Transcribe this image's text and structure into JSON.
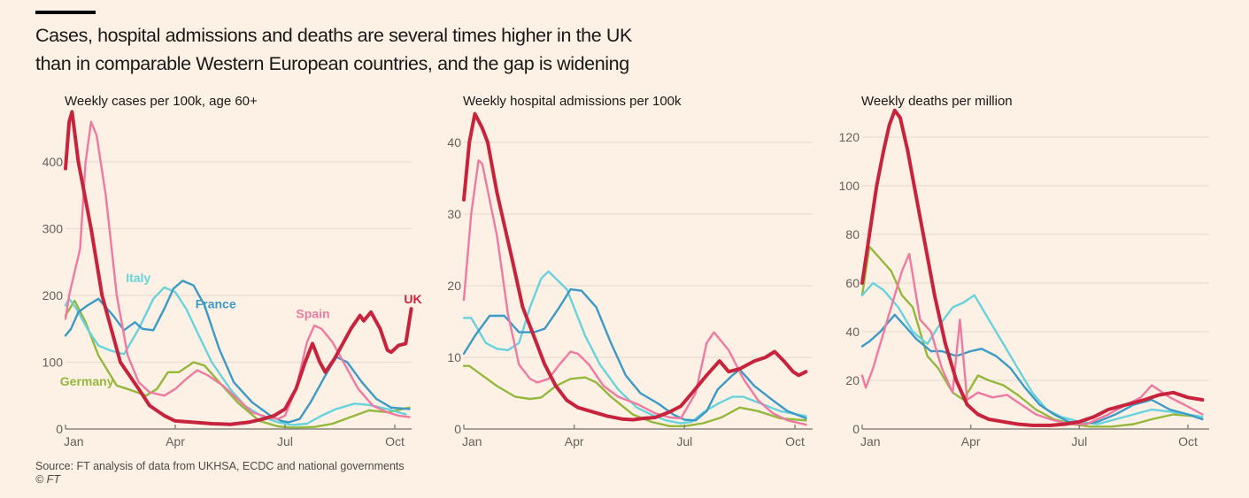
{
  "header": {
    "title_line1": "Cases, hospital admissions and deaths are several times higher in the UK",
    "title_line2": "than in comparable Western European countries, and the gap is widening"
  },
  "footer": {
    "source": "Source: FT analysis of data from UKHSA, ECDC and national governments",
    "copyright": "© FT"
  },
  "colors": {
    "UK": "#c8233d",
    "Spain": "#ef7aa1",
    "France": "#3b9ac6",
    "Italy": "#67d3dc",
    "Germany": "#93b83c",
    "grid": "#e8ddd2",
    "axis": "#8a8580",
    "tick_label": "#66605c"
  },
  "chart_data": [
    {
      "type": "line",
      "title": "Weekly cases per 100k, age 60+",
      "xlabel": "",
      "ylabel": "",
      "x_unit": "months since Jan 1",
      "x_ticks": [
        {
          "value": 0,
          "label": "Jan"
        },
        {
          "value": 3,
          "label": "Apr"
        },
        {
          "value": 6,
          "label": "Jul"
        },
        {
          "value": 9,
          "label": "Oct"
        }
      ],
      "xlim": [
        0,
        9.5
      ],
      "y_ticks": [
        0,
        100,
        200,
        300,
        400
      ],
      "ylim": [
        0,
        480
      ],
      "grid": true,
      "legend": "inline labels",
      "labels": [
        {
          "series": "Italy",
          "text": "Italy",
          "x": 1.65,
          "y": 220
        },
        {
          "series": "France",
          "text": "France",
          "x": 3.55,
          "y": 181
        },
        {
          "series": "Germany",
          "text": "Germany",
          "x": -0.15,
          "y": 65
        },
        {
          "series": "Spain",
          "text": "Spain",
          "x": 6.3,
          "y": 166
        },
        {
          "series": "UK",
          "text": "UK",
          "x": 9.25,
          "y": 188
        }
      ],
      "series": [
        {
          "name": "Germany",
          "x": [
            0,
            0.25,
            0.55,
            0.9,
            1.4,
            1.8,
            2.2,
            2.5,
            2.8,
            3.1,
            3.5,
            3.8,
            4.2,
            4.7,
            5.3,
            5.8,
            6.2,
            6.8,
            7.3,
            7.8,
            8.3,
            8.8,
            9.4
          ],
          "y": [
            170,
            192,
            160,
            110,
            65,
            58,
            50,
            60,
            85,
            85,
            100,
            95,
            70,
            40,
            12,
            4,
            2,
            3,
            8,
            18,
            28,
            25,
            32
          ]
        },
        {
          "name": "Italy",
          "x": [
            0,
            0.1,
            0.3,
            0.6,
            0.9,
            1.2,
            1.6,
            2.0,
            2.4,
            2.7,
            3.0,
            3.3,
            3.6,
            4.0,
            4.5,
            4.9,
            5.4,
            5.8,
            6.2,
            6.6,
            7.0,
            7.4,
            7.9,
            8.3,
            8.8,
            9.1,
            9.3
          ],
          "y": [
            185,
            195,
            180,
            150,
            125,
            118,
            112,
            150,
            195,
            212,
            205,
            180,
            145,
            100,
            60,
            35,
            18,
            10,
            6,
            8,
            20,
            30,
            38,
            36,
            30,
            25,
            22
          ]
        },
        {
          "name": "France",
          "x": [
            0,
            0.15,
            0.35,
            0.6,
            0.9,
            1.3,
            1.6,
            1.9,
            2.1,
            2.4,
            2.7,
            2.95,
            3.2,
            3.5,
            3.8,
            4.2,
            4.6,
            5.1,
            5.6,
            5.9,
            6.1,
            6.4,
            6.7,
            7.1,
            7.4,
            7.7,
            8.1,
            8.5,
            8.9,
            9.4
          ],
          "y": [
            140,
            150,
            175,
            185,
            195,
            170,
            148,
            160,
            150,
            148,
            180,
            210,
            222,
            215,
            185,
            120,
            70,
            40,
            20,
            12,
            10,
            15,
            40,
            80,
            108,
            100,
            70,
            45,
            32,
            30
          ]
        },
        {
          "name": "Spain",
          "x": [
            0,
            0.1,
            0.4,
            0.55,
            0.7,
            0.85,
            1.1,
            1.4,
            1.7,
            2.0,
            2.3,
            2.7,
            3.0,
            3.3,
            3.6,
            3.9,
            4.3,
            4.7,
            5.1,
            5.5,
            5.8,
            6.0,
            6.3,
            6.6,
            6.8,
            7.0,
            7.3,
            7.6,
            8.0,
            8.4,
            8.8,
            9.1,
            9.4
          ],
          "y": [
            165,
            200,
            270,
            400,
            460,
            440,
            350,
            200,
            110,
            70,
            55,
            50,
            60,
            75,
            88,
            80,
            65,
            45,
            25,
            18,
            15,
            20,
            60,
            130,
            155,
            150,
            130,
            100,
            60,
            35,
            25,
            20,
            18
          ]
        },
        {
          "name": "UK",
          "x": [
            0,
            0.1,
            0.18,
            0.35,
            0.7,
            1.0,
            1.5,
            2.0,
            2.3,
            2.7,
            3.0,
            3.5,
            4.0,
            4.5,
            5.0,
            5.4,
            5.7,
            6.0,
            6.3,
            6.55,
            6.75,
            6.95,
            7.1,
            7.35,
            7.6,
            7.8,
            8.05,
            8.15,
            8.35,
            8.6,
            8.8,
            8.9,
            9.1,
            9.3,
            9.45
          ],
          "y": [
            390,
            460,
            475,
            400,
            300,
            200,
            100,
            60,
            35,
            20,
            12,
            10,
            8,
            7,
            10,
            15,
            20,
            30,
            60,
            100,
            128,
            100,
            85,
            105,
            130,
            150,
            170,
            162,
            175,
            150,
            118,
            115,
            125,
            128,
            180
          ]
        }
      ]
    },
    {
      "type": "line",
      "title": "Weekly hospital admissions per 100k",
      "xlabel": "",
      "ylabel": "",
      "x_unit": "months since Jan 1",
      "x_ticks": [
        {
          "value": 0,
          "label": "Jan"
        },
        {
          "value": 3,
          "label": "Apr"
        },
        {
          "value": 6,
          "label": "Jul"
        },
        {
          "value": 9,
          "label": "Oct"
        }
      ],
      "xlim": [
        0,
        9.5
      ],
      "y_ticks": [
        0,
        10,
        20,
        30,
        40
      ],
      "ylim": [
        0,
        45
      ],
      "grid": true,
      "legend": "none",
      "series": [
        {
          "name": "Germany",
          "x": [
            0,
            0.15,
            0.5,
            0.9,
            1.4,
            1.8,
            2.1,
            2.5,
            2.9,
            3.3,
            3.6,
            4.0,
            4.6,
            5.1,
            5.6,
            6.0,
            6.5,
            7.0,
            7.5,
            8.0,
            8.6,
            9.3
          ],
          "y": [
            8.8,
            8.8,
            7.5,
            6,
            4.5,
            4.2,
            4.4,
            6,
            7,
            7.2,
            6.5,
            4.5,
            2,
            1,
            0.4,
            0.4,
            0.8,
            1.6,
            3,
            2.5,
            1.5,
            1.2
          ]
        },
        {
          "name": "Italy",
          "x": [
            0,
            0.2,
            0.6,
            0.9,
            1.2,
            1.5,
            1.8,
            2.1,
            2.3,
            2.6,
            2.8,
            3.3,
            3.7,
            4.2,
            4.7,
            5.1,
            5.5,
            5.9,
            6.2,
            6.5,
            6.9,
            7.3,
            7.6,
            8.1,
            8.6,
            9.3
          ],
          "y": [
            15.5,
            15.5,
            12,
            11.2,
            11,
            12,
            17,
            21,
            22,
            20.5,
            19.5,
            13,
            9,
            5.5,
            3,
            2,
            1.2,
            0.8,
            1,
            2.3,
            3.5,
            4.5,
            4.5,
            3.5,
            2.5,
            1.8
          ]
        },
        {
          "name": "France",
          "x": [
            0,
            0.3,
            0.7,
            1.1,
            1.5,
            1.9,
            2.2,
            2.6,
            2.9,
            3.2,
            3.6,
            4.0,
            4.4,
            4.8,
            5.3,
            5.7,
            6.0,
            6.3,
            6.6,
            6.9,
            7.3,
            7.5,
            7.9,
            8.4,
            8.8,
            9.3
          ],
          "y": [
            10.5,
            13,
            15.8,
            15.8,
            13.5,
            13.5,
            14,
            17,
            19.5,
            19.3,
            17,
            12,
            7.5,
            5,
            3.5,
            2,
            1.3,
            1.2,
            2.5,
            5.5,
            7.5,
            8.3,
            6,
            4,
            2.5,
            1.5
          ]
        },
        {
          "name": "Spain",
          "x": [
            0,
            0.2,
            0.4,
            0.5,
            0.9,
            1.2,
            1.5,
            1.8,
            2.0,
            2.3,
            2.6,
            2.9,
            3.1,
            3.4,
            3.8,
            4.2,
            4.7,
            5.2,
            5.6,
            5.9,
            6.3,
            6.6,
            6.8,
            7.2,
            7.6,
            8.0,
            8.4,
            8.8,
            9.3
          ],
          "y": [
            18,
            30,
            37.5,
            37,
            27,
            16,
            9,
            7,
            6.5,
            7,
            9,
            10.8,
            10.5,
            9,
            6,
            4.5,
            3.5,
            2.2,
            1.6,
            1.5,
            5,
            12,
            13.5,
            11,
            7,
            4,
            2.2,
            1.2,
            0.6
          ]
        },
        {
          "name": "UK",
          "x": [
            0,
            0.15,
            0.3,
            0.5,
            0.65,
            0.9,
            1.3,
            1.6,
            1.9,
            2.2,
            2.5,
            2.8,
            3.1,
            3.5,
            3.9,
            4.3,
            4.6,
            4.9,
            5.2,
            5.6,
            5.9,
            6.2,
            6.6,
            6.95,
            7.2,
            7.5,
            7.9,
            8.2,
            8.45,
            8.7,
            8.95,
            9.1,
            9.3
          ],
          "y": [
            32,
            40,
            44,
            42,
            40,
            33,
            24,
            17,
            13,
            9,
            6,
            4,
            3,
            2.4,
            1.8,
            1.4,
            1.3,
            1.5,
            1.6,
            2.4,
            3.2,
            5,
            7.5,
            9.5,
            8,
            8.4,
            9.5,
            10,
            10.8,
            9.5,
            8,
            7.5,
            8
          ]
        }
      ]
    },
    {
      "type": "line",
      "title": "Weekly deaths per million",
      "xlabel": "",
      "ylabel": "",
      "x_unit": "months since Jan 1",
      "x_ticks": [
        {
          "value": 0,
          "label": "Jan"
        },
        {
          "value": 3,
          "label": "Apr"
        },
        {
          "value": 6,
          "label": "Jul"
        },
        {
          "value": 9,
          "label": "Oct"
        }
      ],
      "xlim": [
        0,
        9.5
      ],
      "y_ticks": [
        0,
        20,
        40,
        60,
        80,
        100,
        120
      ],
      "ylim": [
        0,
        135
      ],
      "grid": true,
      "legend": "none",
      "series": [
        {
          "name": "Germany",
          "x": [
            0,
            0.2,
            0.5,
            0.8,
            1.1,
            1.4,
            1.8,
            2.1,
            2.5,
            2.8,
            3.2,
            3.5,
            3.9,
            4.3,
            4.8,
            5.3,
            5.8,
            6.3,
            6.9,
            7.5,
            8.0,
            8.6,
            9.4
          ],
          "y": [
            55,
            75,
            70,
            65,
            55,
            50,
            30,
            25,
            15,
            12,
            22,
            20,
            18,
            14,
            8,
            4,
            2,
            1,
            1,
            2,
            4,
            6,
            5
          ]
        },
        {
          "name": "Italy",
          "x": [
            0,
            0.3,
            0.6,
            1.0,
            1.4,
            1.8,
            2.1,
            2.5,
            2.8,
            3.1,
            3.5,
            3.9,
            4.3,
            4.7,
            5.1,
            5.5,
            6.0,
            6.5,
            7.0,
            7.5,
            8.0,
            8.6,
            9.4
          ],
          "y": [
            55,
            60,
            57,
            50,
            40,
            35,
            42,
            50,
            52,
            55,
            45,
            35,
            25,
            15,
            8,
            5,
            3,
            2,
            4,
            6,
            8,
            7,
            5
          ]
        },
        {
          "name": "France",
          "x": [
            0,
            0.2,
            0.5,
            0.9,
            1.2,
            1.5,
            1.9,
            2.2,
            2.6,
            3.0,
            3.3,
            3.7,
            4.1,
            4.5,
            4.9,
            5.3,
            5.7,
            6.1,
            6.5,
            7.0,
            7.5,
            8.0,
            8.5,
            9.0,
            9.4
          ],
          "y": [
            34,
            36,
            40,
            47,
            42,
            37,
            32,
            32,
            30,
            32,
            33,
            30,
            25,
            17,
            10,
            6,
            3,
            2,
            3,
            6,
            10,
            12,
            8,
            6,
            4
          ]
        },
        {
          "name": "Spain",
          "x": [
            0,
            0.1,
            0.3,
            0.6,
            0.9,
            1.1,
            1.3,
            1.6,
            1.9,
            2.2,
            2.5,
            2.7,
            2.9,
            3.2,
            3.6,
            4.0,
            4.4,
            4.8,
            5.2,
            5.7,
            6.2,
            6.8,
            7.3,
            7.7,
            8.0,
            8.5,
            8.9,
            9.4
          ],
          "y": [
            22,
            17,
            25,
            40,
            55,
            65,
            72,
            45,
            40,
            25,
            15,
            45,
            12,
            15,
            13,
            14,
            10,
            6,
            4,
            2,
            2,
            6,
            10,
            13,
            18,
            13,
            10,
            6
          ]
        },
        {
          "name": "UK",
          "x": [
            0,
            0.2,
            0.4,
            0.6,
            0.75,
            0.9,
            1.05,
            1.25,
            1.5,
            1.75,
            2.0,
            2.3,
            2.6,
            2.9,
            3.2,
            3.5,
            3.9,
            4.3,
            4.7,
            5.2,
            5.6,
            6.0,
            6.4,
            6.8,
            7.3,
            7.8,
            8.2,
            8.6,
            9.0,
            9.4
          ],
          "y": [
            60,
            80,
            100,
            115,
            125,
            131,
            128,
            115,
            95,
            75,
            55,
            35,
            20,
            10,
            6,
            4,
            3,
            2,
            1.5,
            1.5,
            2,
            3,
            5,
            8,
            10,
            12,
            14,
            15,
            13,
            12
          ]
        }
      ]
    }
  ]
}
